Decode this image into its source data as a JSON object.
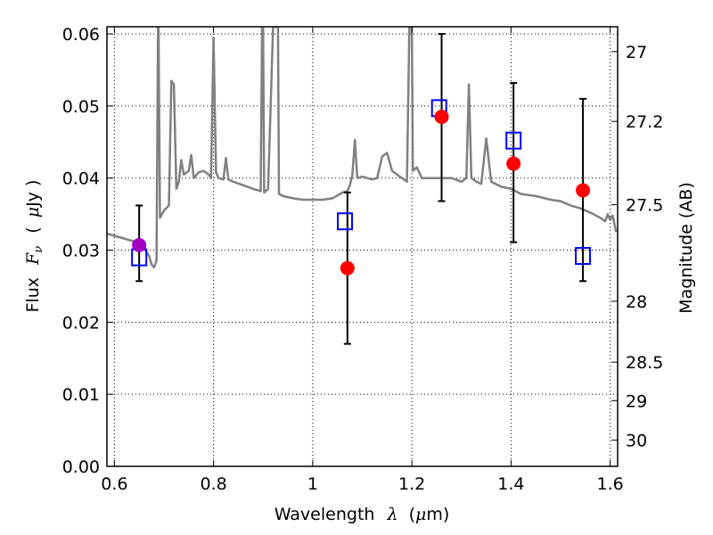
{
  "chart_data": {
    "type": "scatter",
    "title": "",
    "xlabel": {
      "prefix": "Wavelength",
      "symbol": "λ",
      "unit_open": "(",
      "unit_mu": "μ",
      "unit_rest": "m)"
    },
    "ylabel": {
      "prefix": "Flux",
      "symbol": "F",
      "subscript": "ν",
      "unit_open": "(",
      "unit_mu": "μ",
      "unit_rest": "Jy )"
    },
    "y2label": "Magnitude (AB)",
    "xlim": [
      0.585,
      1.615
    ],
    "ylim": [
      0.0,
      0.061
    ],
    "grid": true,
    "x_ticks": [
      {
        "value": 0.6,
        "label": "0.6"
      },
      {
        "value": 0.8,
        "label": "0.8"
      },
      {
        "value": 1.0,
        "label": "1"
      },
      {
        "value": 1.2,
        "label": "1.2"
      },
      {
        "value": 1.4,
        "label": "1.4"
      },
      {
        "value": 1.6,
        "label": "1.6"
      }
    ],
    "y_ticks": [
      {
        "value": 0.0,
        "label": "0.00"
      },
      {
        "value": 0.01,
        "label": "0.01"
      },
      {
        "value": 0.02,
        "label": "0.02"
      },
      {
        "value": 0.03,
        "label": "0.03"
      },
      {
        "value": 0.04,
        "label": "0.04"
      },
      {
        "value": 0.05,
        "label": "0.05"
      },
      {
        "value": 0.06,
        "label": "0.06"
      }
    ],
    "y2_ticks": [
      {
        "mag": 27,
        "label": "27"
      },
      {
        "mag": 27.2,
        "label": "27.2"
      },
      {
        "mag": 27.5,
        "label": "27.5"
      },
      {
        "mag": 28,
        "label": "28"
      },
      {
        "mag": 28.5,
        "label": "28.5"
      },
      {
        "mag": 29,
        "label": "29"
      },
      {
        "mag": 30,
        "label": "30"
      }
    ],
    "series": [
      {
        "kind": "line",
        "color": "#808080",
        "points": [
          [
            0.585,
            0.0323
          ],
          [
            0.61,
            0.0318
          ],
          [
            0.64,
            0.0312
          ],
          [
            0.66,
            0.0303
          ],
          [
            0.67,
            0.0292
          ],
          [
            0.675,
            0.028
          ],
          [
            0.68,
            0.0276
          ],
          [
            0.685,
            0.0285
          ],
          [
            0.688,
            0.061
          ],
          [
            0.689,
            0.061
          ],
          [
            0.692,
            0.0345
          ],
          [
            0.7,
            0.0355
          ],
          [
            0.71,
            0.0362
          ],
          [
            0.715,
            0.0535
          ],
          [
            0.72,
            0.053
          ],
          [
            0.725,
            0.0385
          ],
          [
            0.73,
            0.0395
          ],
          [
            0.735,
            0.0425
          ],
          [
            0.74,
            0.0405
          ],
          [
            0.75,
            0.041
          ],
          [
            0.755,
            0.0432
          ],
          [
            0.76,
            0.04
          ],
          [
            0.77,
            0.0408
          ],
          [
            0.78,
            0.041
          ],
          [
            0.79,
            0.0405
          ],
          [
            0.795,
            0.04
          ],
          [
            0.8,
            0.0595
          ],
          [
            0.805,
            0.0408
          ],
          [
            0.81,
            0.04
          ],
          [
            0.82,
            0.0398
          ],
          [
            0.825,
            0.0428
          ],
          [
            0.83,
            0.0398
          ],
          [
            0.84,
            0.0395
          ],
          [
            0.86,
            0.039
          ],
          [
            0.88,
            0.0385
          ],
          [
            0.895,
            0.0382
          ],
          [
            0.898,
            0.061
          ],
          [
            0.9,
            0.061
          ],
          [
            0.902,
            0.038
          ],
          [
            0.91,
            0.0385
          ],
          [
            0.92,
            0.061
          ],
          [
            0.93,
            0.061
          ],
          [
            0.932,
            0.0378
          ],
          [
            0.94,
            0.0375
          ],
          [
            0.96,
            0.0372
          ],
          [
            0.98,
            0.037
          ],
          [
            1.0,
            0.037
          ],
          [
            1.02,
            0.037
          ],
          [
            1.04,
            0.0372
          ],
          [
            1.06,
            0.038
          ],
          [
            1.07,
            0.0382
          ],
          [
            1.075,
            0.039
          ],
          [
            1.08,
            0.0405
          ],
          [
            1.085,
            0.0453
          ],
          [
            1.09,
            0.04
          ],
          [
            1.1,
            0.0402
          ],
          [
            1.12,
            0.0398
          ],
          [
            1.13,
            0.04
          ],
          [
            1.14,
            0.043
          ],
          [
            1.15,
            0.0435
          ],
          [
            1.16,
            0.041
          ],
          [
            1.18,
            0.04
          ],
          [
            1.19,
            0.0395
          ],
          [
            1.195,
            0.061
          ],
          [
            1.2,
            0.061
          ],
          [
            1.202,
            0.041
          ],
          [
            1.21,
            0.0415
          ],
          [
            1.22,
            0.04
          ],
          [
            1.24,
            0.04
          ],
          [
            1.28,
            0.04
          ],
          [
            1.3,
            0.0395
          ],
          [
            1.31,
            0.04
          ],
          [
            1.315,
            0.053
          ],
          [
            1.32,
            0.04
          ],
          [
            1.33,
            0.0395
          ],
          [
            1.34,
            0.0392
          ],
          [
            1.35,
            0.0455
          ],
          [
            1.36,
            0.0395
          ],
          [
            1.38,
            0.0388
          ],
          [
            1.4,
            0.0385
          ],
          [
            1.42,
            0.0378
          ],
          [
            1.45,
            0.0375
          ],
          [
            1.48,
            0.037
          ],
          [
            1.5,
            0.0368
          ],
          [
            1.52,
            0.0362
          ],
          [
            1.54,
            0.0358
          ],
          [
            1.56,
            0.0352
          ],
          [
            1.58,
            0.0345
          ],
          [
            1.59,
            0.034
          ],
          [
            1.595,
            0.035
          ],
          [
            1.6,
            0.0342
          ],
          [
            1.605,
            0.0348
          ],
          [
            1.612,
            0.0325
          ]
        ]
      }
    ],
    "squares": {
      "color": "#0000ff",
      "points": [
        {
          "x": 0.65,
          "y": 0.029
        },
        {
          "x": 1.065,
          "y": 0.034
        },
        {
          "x": 1.255,
          "y": 0.0497
        },
        {
          "x": 1.405,
          "y": 0.0452
        },
        {
          "x": 1.545,
          "y": 0.0292
        }
      ]
    },
    "circles": {
      "points": [
        {
          "x": 0.65,
          "y": 0.0307,
          "err": [
            0.0257,
            0.0362
          ],
          "color": "#a200c0"
        },
        {
          "x": 1.07,
          "y": 0.0275,
          "err": [
            0.017,
            0.038
          ],
          "color": "#ff0000"
        },
        {
          "x": 1.26,
          "y": 0.0485,
          "err": [
            0.0368,
            0.06
          ],
          "color": "#ff0000"
        },
        {
          "x": 1.405,
          "y": 0.042,
          "err": [
            0.0311,
            0.0532
          ],
          "color": "#ff0000"
        },
        {
          "x": 1.545,
          "y": 0.0383,
          "err": [
            0.0257,
            0.051
          ],
          "color": "#ff0000"
        }
      ]
    }
  }
}
